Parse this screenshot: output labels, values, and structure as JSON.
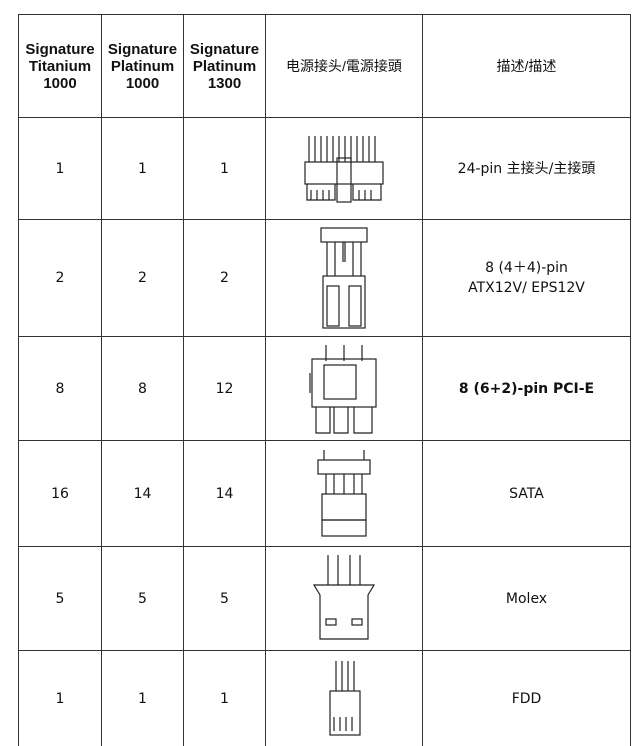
{
  "header": [
    "Signature Titanium 1000",
    "Signature Platinum 1000",
    "Signature Platinum 1300",
    "电源接头/電源接頭",
    "描述/描述"
  ],
  "rows": [
    {
      "cells": [
        "1",
        "1",
        "1"
      ],
      "description": [
        "24-pin 主接头/主接頭"
      ]
    },
    {
      "cells": [
        "2",
        "2",
        "2"
      ],
      "description": [
        "8 (4＋4)-pin",
        "ATX12V/ EPS12V"
      ]
    },
    {
      "cells": [
        "8",
        "8",
        "12"
      ],
      "description": [
        "8 (6+2)-pin PCI-E"
      ]
    },
    {
      "cells": [
        "16",
        "14",
        "14"
      ],
      "description": [
        "SATA"
      ]
    },
    {
      "cells": [
        "5",
        "5",
        "5"
      ],
      "description": [
        "Molex"
      ]
    },
    {
      "cells": [
        "1",
        "1",
        "1"
      ],
      "description": [
        "FDD"
      ]
    }
  ]
}
